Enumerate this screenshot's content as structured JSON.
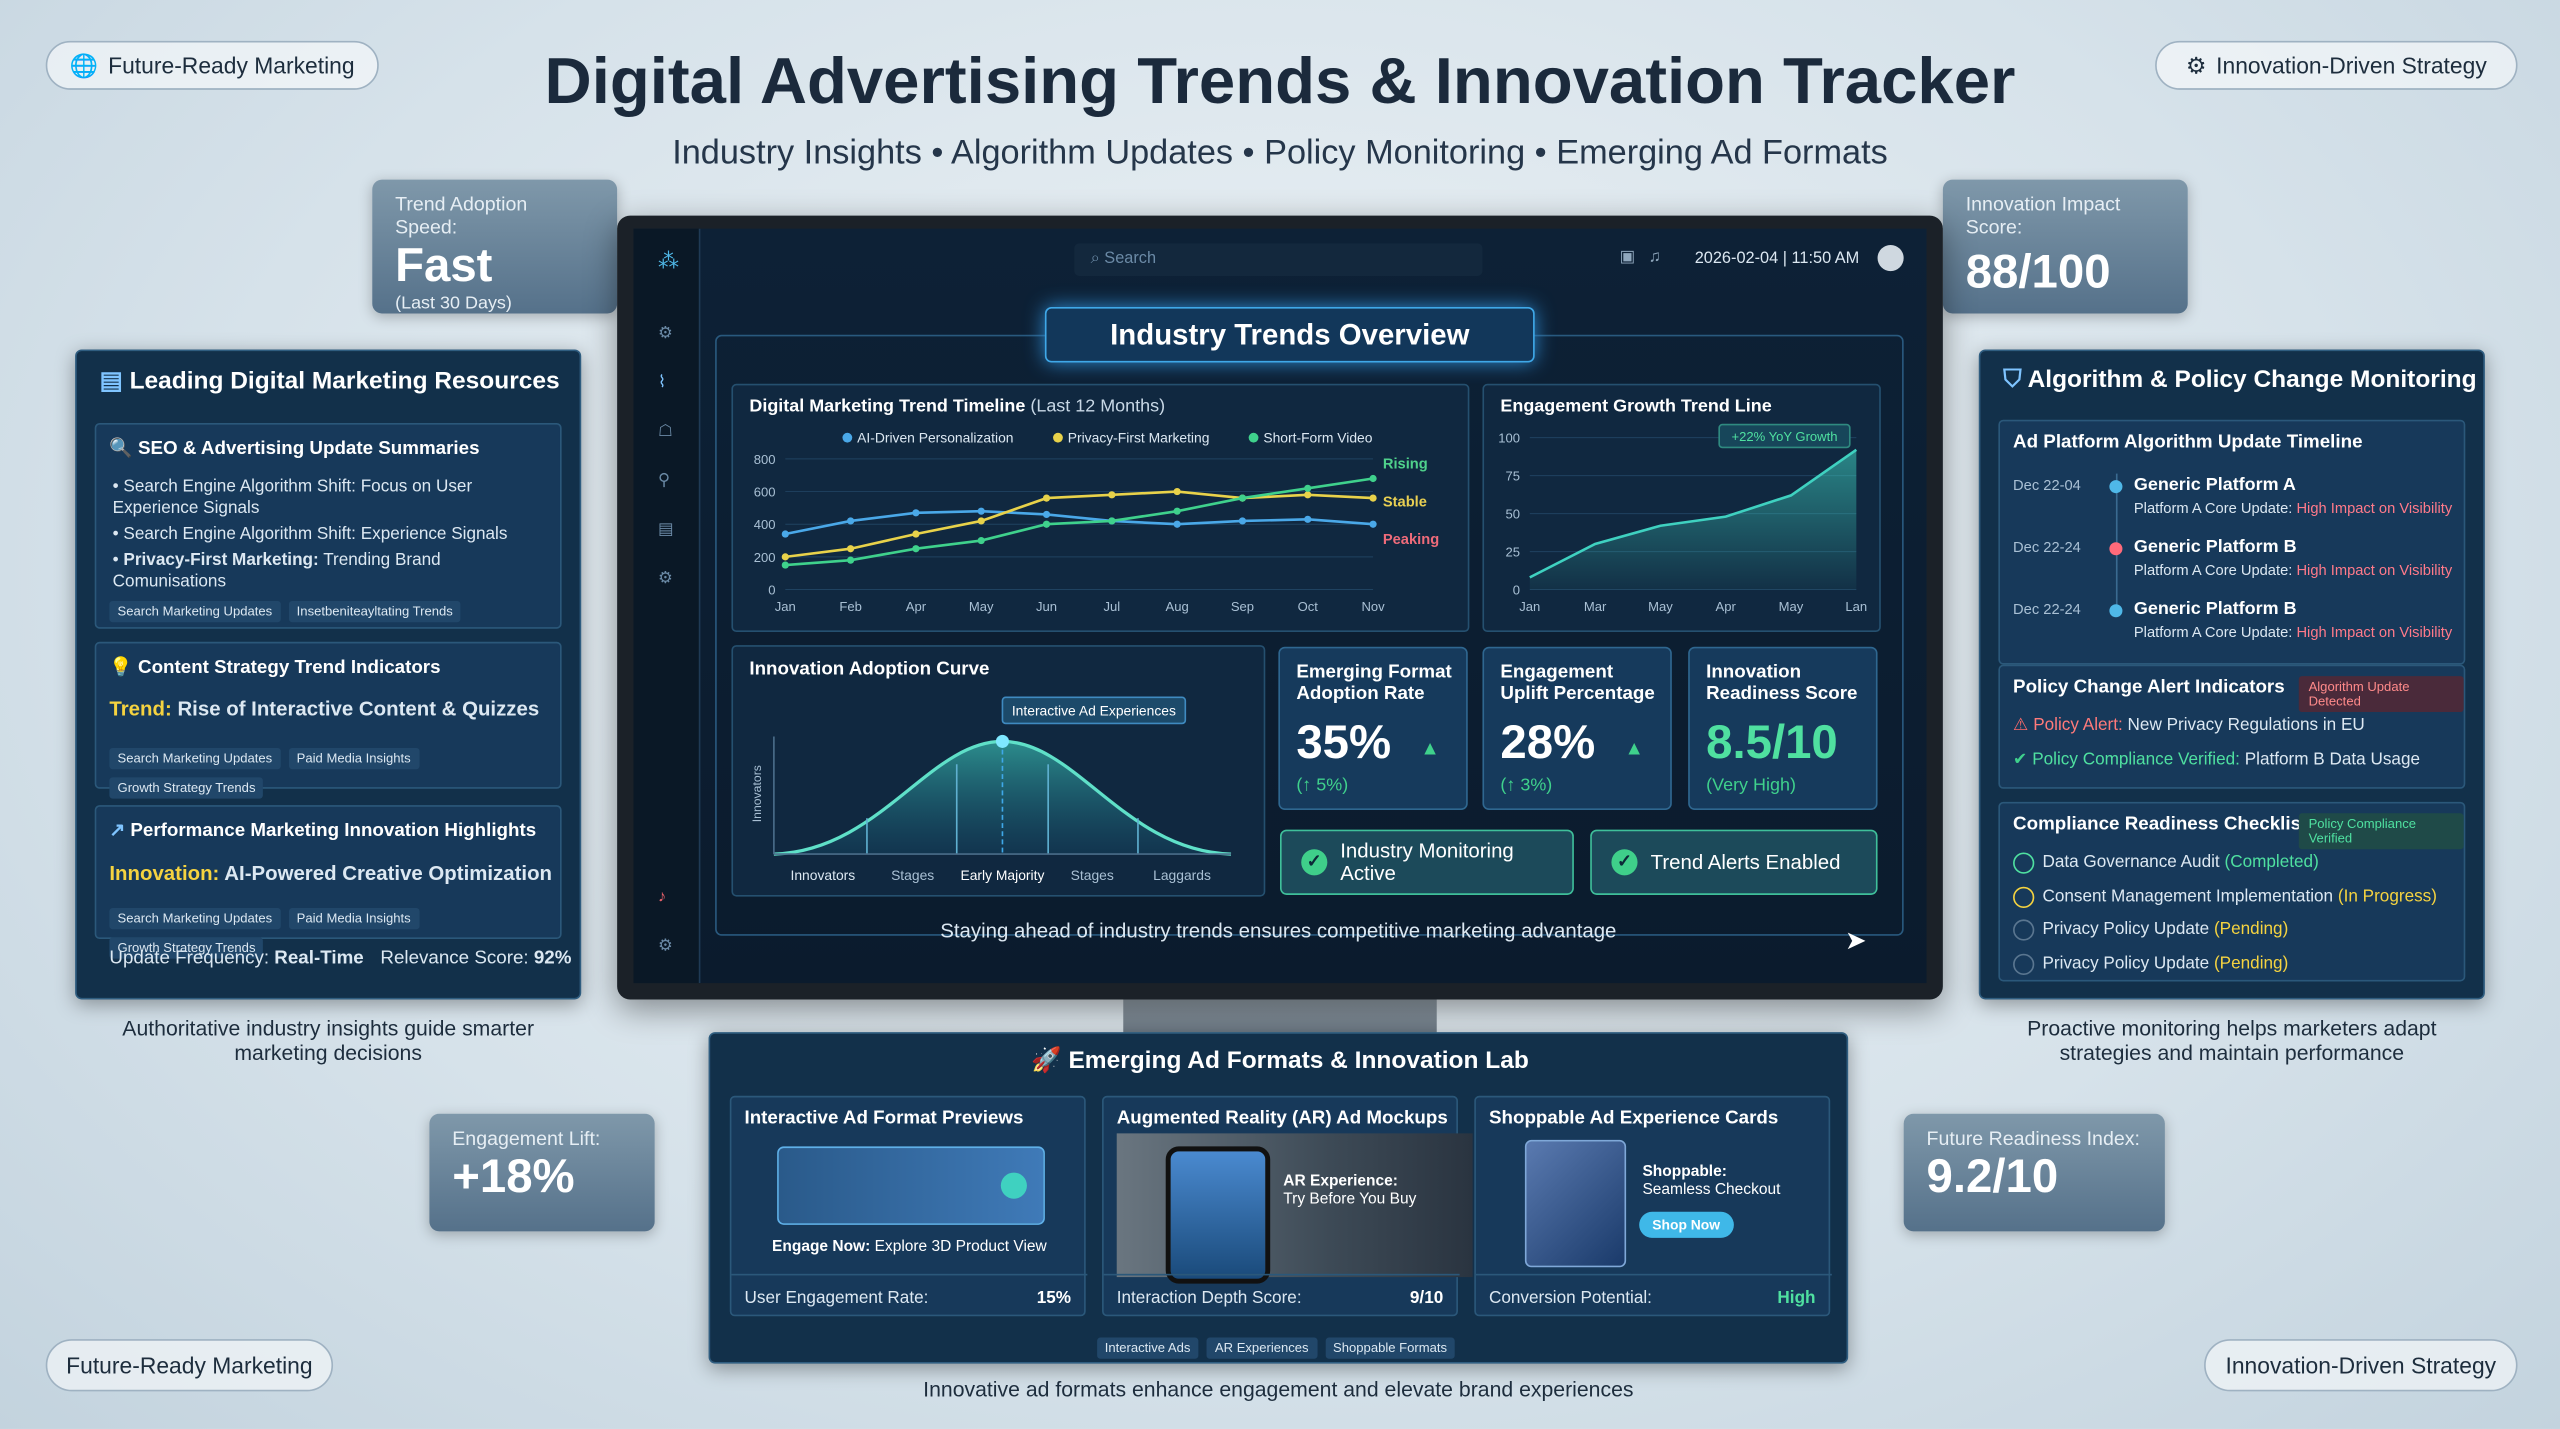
{
  "header": {
    "badge_left": "Future-Ready Marketing",
    "badge_right": "Innovation-Driven Strategy",
    "title": "Digital Advertising Trends & Innovation Tracker",
    "subtitle": "Industry Insights • Algorithm Updates • Policy Monitoring • Emerging Ad Formats"
  },
  "stats": {
    "trend_adoption": {
      "label": "Trend Adoption Speed:",
      "value": "Fast",
      "note": "(Last 30 Days)"
    },
    "impact": {
      "label": "Innovation Impact Score:",
      "value": "88/100"
    },
    "engagement_lift": {
      "label": "Engagement Lift:",
      "value": "+18%"
    },
    "future_readiness": {
      "label": "Future Readiness Index:",
      "value": "9.2/10"
    }
  },
  "resources": {
    "title": "Leading Digital Marketing Resources",
    "seo": {
      "title": "SEO & Advertising Update Summaries",
      "bullets": [
        "Search Engine Algorithm Shift: Focus on User Experience Signals",
        "Search Engine Algorithm Shift: Experience Signals"
      ],
      "bold_bullet": {
        "lead": "Privacy-First Marketing:",
        "text": "Trending Brand Comunisations"
      },
      "tags": [
        "Search Marketing Updates",
        "Insetbeniteayltating Trends"
      ]
    },
    "content": {
      "title": "Content Strategy Trend Indicators",
      "lead": "Trend:",
      "text": "Rise of Interactive Content & Quizzes",
      "tags": [
        "Search Marketing Updates",
        "Paid Media Insights",
        "Growth Strategy Trends"
      ]
    },
    "performance": {
      "title": "Performance Marketing Innovation Highlights",
      "lead": "Innovation:",
      "text": "AI-Powered Creative Optimization",
      "tags": [
        "Search Marketing Updates",
        "Paid Media Insights",
        "Growth Strategy Trends"
      ]
    },
    "frequency": {
      "label": "Update Frequency:",
      "value": "Real-Time"
    },
    "relevance": {
      "label": "Relevance Score:",
      "value": "92%"
    },
    "caption": "Authoritative industry insights guide smarter marketing decisions"
  },
  "dashboard": {
    "search": "Search",
    "datetime": "2026-02-04 | 11:50 AM",
    "heading": "Industry Trends Overview",
    "adoption_curve": {
      "title": "Innovation Adoption Curve",
      "annotation": "Interactive Ad Experiences",
      "y_label": "Innovators",
      "x_labels": [
        "Innovators",
        "Stages",
        "Early Majority",
        "Stages",
        "Laggards"
      ]
    },
    "metrics": [
      {
        "label": "Emerging Format Adoption Rate",
        "value": "35%",
        "change": "(↑ 5%)"
      },
      {
        "label": "Engagement Uplift Percentage",
        "value": "28%",
        "change": "(↑ 3%)"
      },
      {
        "label": "Innovation Readiness Score",
        "value": "8.5/10",
        "change": "(Very High)"
      }
    ],
    "buttons": [
      "Industry Monitoring Active",
      "Trend Alerts Enabled"
    ],
    "footer": "Staying ahead of industry trends ensures competitive marketing advantage"
  },
  "monitoring": {
    "title": "Algorithm & Policy Change Monitoring",
    "timeline": {
      "title": "Ad Platform Algorithm Update Timeline",
      "items": [
        {
          "date": "Dec 22-04",
          "platform": "Generic Platform A",
          "lead": "Platform A Core Update:",
          "impact": "High Impact on Visibility"
        },
        {
          "date": "Dec 22-24",
          "platform": "Generic Platform B",
          "lead": "Platform A Core Update:",
          "impact": "High Impact on Visibility"
        },
        {
          "date": "Dec 22-24",
          "platform": "Generic Platform B",
          "lead": "Platform A Core Update:",
          "impact": "High Impact on Visibility"
        }
      ]
    },
    "alerts": {
      "title": "Policy Change Alert Indicators",
      "badge": "Algorithm Update Detected",
      "alert": {
        "lead": "Policy Alert:",
        "text": "New Privacy Regulations in EU"
      },
      "verified": {
        "lead": "Policy Compliance Verified:",
        "text": "Platform B Data Usage"
      }
    },
    "checklist": {
      "title": "Compliance Readiness Checklist",
      "badge": "Policy Compliance Verified",
      "items": [
        {
          "text": "Data Governance Audit",
          "status": "(Completed)"
        },
        {
          "text": "Consent Management Implementation",
          "status": "(In Progress)"
        },
        {
          "text": "Privacy Policy Update",
          "status": "(Pending)"
        },
        {
          "text": "Privacy Policy Update",
          "status": "(Pending)"
        }
      ]
    },
    "caption": "Proactive monitoring helps marketers adapt strategies and maintain performance"
  },
  "lab": {
    "title": "Emerging Ad Formats & Innovation Lab",
    "cards": [
      {
        "title": "Interactive Ad Format Previews",
        "lead": "Engage Now:",
        "text": "Explore 3D Product View",
        "metric": "User Engagement Rate:",
        "value": "15%"
      },
      {
        "title": "Augmented Reality (AR) Ad Mockups",
        "lead": "AR Experience:",
        "text": "Try Before You Buy",
        "metric": "Interaction Depth Score:",
        "value": "9/10"
      },
      {
        "title": "Shoppable Ad Experience Cards",
        "lead": "Shoppable:",
        "text": "Seamless Checkout",
        "button": "Shop Now",
        "metric": "Conversion Potential:",
        "value": "High"
      }
    ],
    "tags": [
      "Interactive Ads",
      "AR Experiences",
      "Shoppable Formats"
    ],
    "caption": "Innovative ad formats enhance engagement and elevate brand experiences"
  },
  "footer": {
    "badge_left": "Future-Ready Marketing",
    "badge_right": "Innovation-Driven Strategy"
  },
  "chart_data": [
    {
      "type": "line",
      "title": "Digital Marketing Trend Timeline",
      "subtitle": "(Last 12 Months)",
      "categories": [
        "Jan",
        "Feb",
        "Apr",
        "May",
        "Jun",
        "Jul",
        "Aug",
        "Sep",
        "Oct",
        "Nov"
      ],
      "ylim": [
        0,
        800
      ],
      "yticks": [
        0,
        200,
        400,
        600,
        800
      ],
      "grid": true,
      "series": [
        {
          "name": "AI-Driven Personalization",
          "color": "#4aa8e8",
          "values": [
            340,
            420,
            470,
            480,
            460,
            420,
            400,
            420,
            430,
            400
          ]
        },
        {
          "name": "Privacy-First Marketing",
          "color": "#e8d24a",
          "values": [
            200,
            250,
            340,
            420,
            560,
            580,
            600,
            560,
            580,
            560
          ]
        },
        {
          "name": "Short-Form Video",
          "color": "#3fd18c",
          "values": [
            150,
            180,
            250,
            300,
            400,
            420,
            480,
            560,
            620,
            680
          ]
        }
      ],
      "annotations": [
        {
          "text": "Rising",
          "color": "#4fd18b"
        },
        {
          "text": "Stable",
          "color": "#e8cf52"
        },
        {
          "text": "Peaking",
          "color": "#ef6b7a"
        }
      ]
    },
    {
      "type": "area",
      "title": "Engagement Growth Trend Line",
      "categories": [
        "Jan",
        "Mar",
        "May",
        "Apr",
        "May",
        "Lan"
      ],
      "values": [
        8,
        30,
        42,
        48,
        62,
        92
      ],
      "color": "#3fd1c0",
      "ylim": [
        0,
        100
      ],
      "yticks": [
        0,
        25,
        50,
        75,
        100
      ],
      "grid": true,
      "annotation": "+22% YoY Growth"
    }
  ]
}
